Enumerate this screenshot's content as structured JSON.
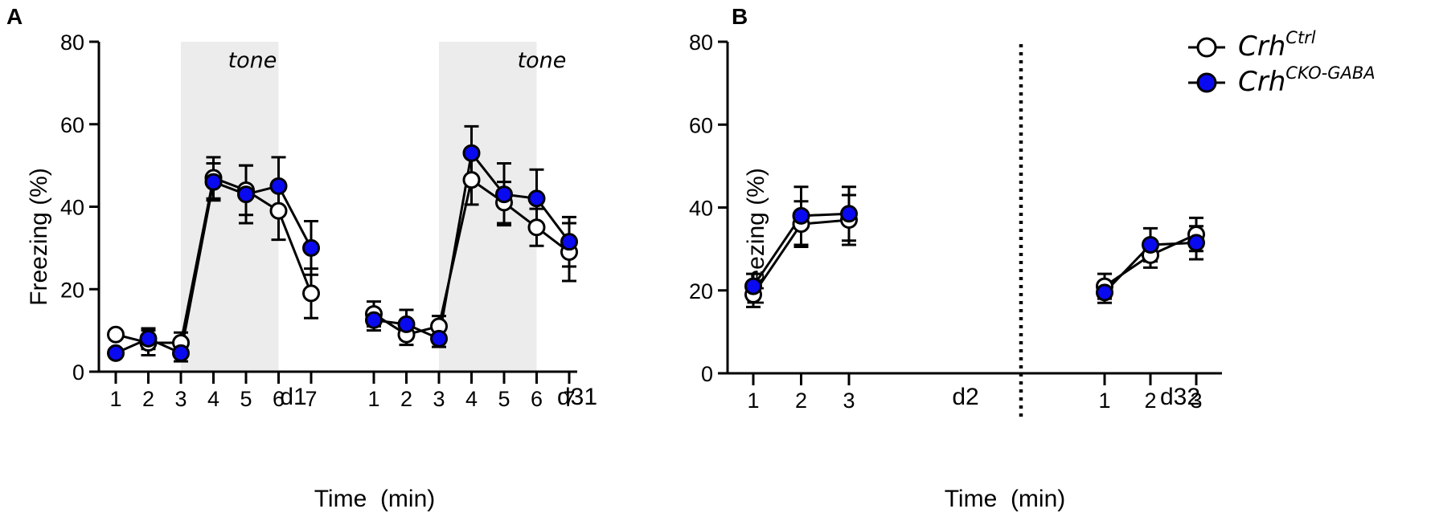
{
  "legend": {
    "items": [
      {
        "base": "Crh",
        "sup": "Ctrl",
        "fill": "#ffffff"
      },
      {
        "base": "Crh",
        "sup": "CKO-GABA",
        "fill": "#0a0af0"
      }
    ]
  },
  "chart_data": [
    {
      "panel_label": "A",
      "type": "line",
      "title": "",
      "xlabel": "Time  (min)",
      "ylabel": "Freezing (%)",
      "ylim": [
        0,
        80
      ],
      "yticks": [
        0,
        20,
        40,
        60,
        80
      ],
      "shade_label": "tone",
      "groups": [
        {
          "day_label": "d1",
          "categories": [
            "1",
            "2",
            "3",
            "4",
            "5",
            "6",
            "7"
          ],
          "shade_range": [
            3,
            6
          ],
          "series": [
            {
              "name": "Crh Ctrl",
              "values": [
                9,
                7,
                7,
                47,
                44,
                39,
                19
              ],
              "errors": [
                0,
                3,
                2.5,
                5,
                6,
                7,
                6
              ]
            },
            {
              "name": "Crh CKO-GABA",
              "values": [
                4.5,
                8,
                4.5,
                46,
                43,
                45,
                30
              ],
              "errors": [
                0,
                2.5,
                2,
                4.5,
                7,
                7,
                6.5
              ]
            }
          ]
        },
        {
          "day_label": "d31",
          "categories": [
            "1",
            "2",
            "3",
            "4",
            "5",
            "6",
            "7"
          ],
          "shade_range": [
            3,
            6
          ],
          "series": [
            {
              "name": "Crh Ctrl",
              "values": [
                14,
                9,
                11,
                46.5,
                41,
                35,
                29
              ],
              "errors": [
                3,
                2.5,
                2.5,
                6,
                5,
                4.5,
                7
              ]
            },
            {
              "name": "Crh CKO-GABA",
              "values": [
                12.5,
                11.5,
                8,
                53,
                43,
                42,
                31.5
              ],
              "errors": [
                2.5,
                3.5,
                2,
                6.5,
                7.5,
                7,
                6
              ]
            }
          ]
        }
      ]
    },
    {
      "panel_label": "B",
      "type": "line",
      "title": "",
      "xlabel": "Time  (min)",
      "ylabel": "Freezing (%)",
      "ylim": [
        0,
        80
      ],
      "yticks": [
        0,
        20,
        40,
        60,
        80
      ],
      "groups": [
        {
          "day_label": "d2",
          "categories": [
            "1",
            "2",
            "3"
          ],
          "series": [
            {
              "name": "Crh Ctrl",
              "values": [
                19,
                36,
                37
              ],
              "errors": [
                3,
                5.5,
                6
              ]
            },
            {
              "name": "Crh CKO-GABA",
              "values": [
                21,
                38,
                38.5
              ],
              "errors": [
                3,
                7,
                6.5
              ]
            }
          ]
        },
        {
          "day_label": "d32",
          "categories": [
            "1",
            "2",
            "3"
          ],
          "series": [
            {
              "name": "Crh Ctrl",
              "values": [
                21,
                28.5,
                33.5
              ],
              "errors": [
                3,
                3,
                4
              ]
            },
            {
              "name": "Crh CKO-GABA",
              "values": [
                19.5,
                31,
                31.5
              ],
              "errors": [
                2.5,
                4,
                4
              ]
            }
          ]
        }
      ]
    }
  ]
}
